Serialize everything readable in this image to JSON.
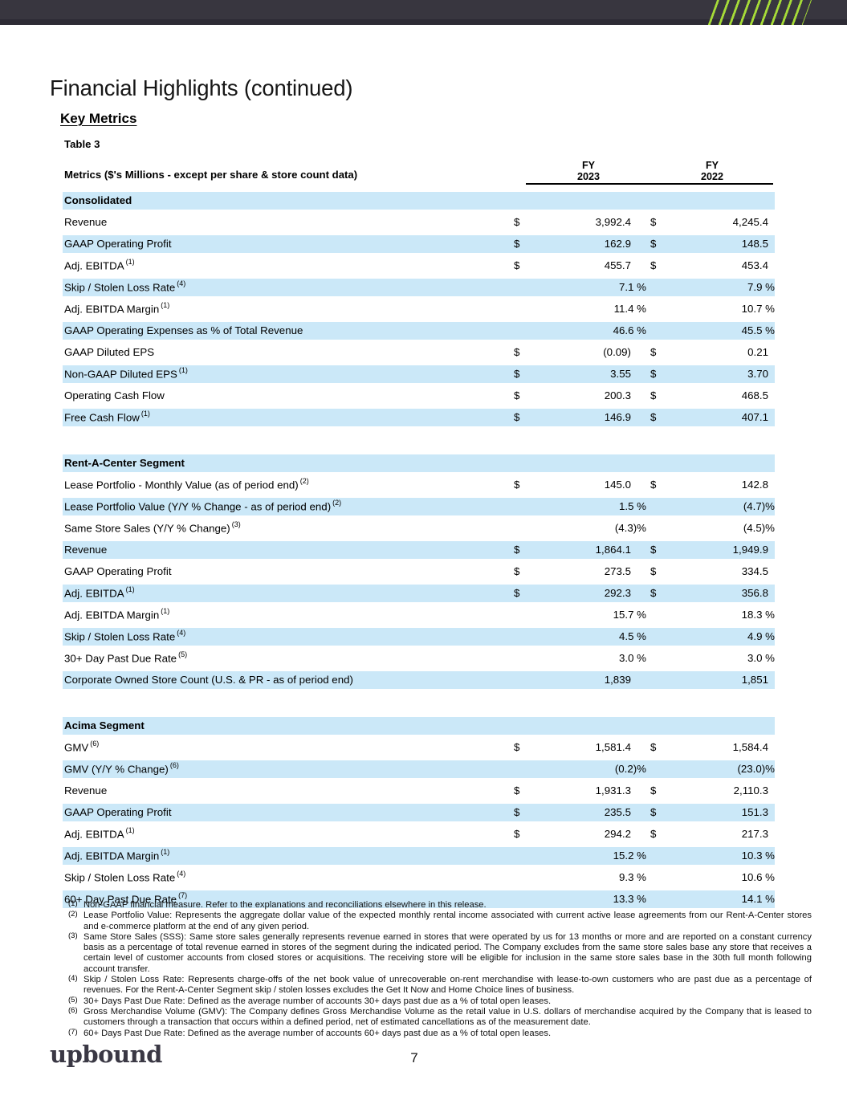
{
  "header": {
    "title": "Financial Highlights (continued)",
    "subtitle": "Key Metrics"
  },
  "table": {
    "label": "Table 3",
    "metrics_header": "Metrics ($'s Millions - except per share & store count data)",
    "columns": [
      {
        "line1": "FY",
        "line2": "2023"
      },
      {
        "line1": "FY",
        "line2": "2022"
      }
    ]
  },
  "colors": {
    "row_highlight": "#cbe8f8",
    "banner": "#38363f",
    "stripe_green": "#a6db38",
    "logo_text": "#3a3844"
  },
  "sections": [
    {
      "name": "Consolidated",
      "rows": [
        {
          "label": "Revenue",
          "sup": "",
          "d1": "$",
          "v1": "3,992.4",
          "d2": "$",
          "v2": "4,245.4"
        },
        {
          "label": "GAAP Operating Profit",
          "sup": "",
          "d1": "$",
          "v1": "162.9",
          "d2": "$",
          "v2": "148.5"
        },
        {
          "label": "Adj. EBITDA",
          "sup": "(1)",
          "d1": "$",
          "v1": "455.7",
          "d2": "$",
          "v2": "453.4"
        },
        {
          "label": "Skip / Stolen Loss Rate",
          "sup": "(4)",
          "d1": "",
          "v1": "7.1 %",
          "d2": "",
          "v2": "7.9 %"
        },
        {
          "label": "Adj. EBITDA Margin",
          "sup": "(1)",
          "d1": "",
          "v1": "11.4 %",
          "d2": "",
          "v2": "10.7 %"
        },
        {
          "label": "GAAP Operating Expenses as % of Total Revenue",
          "sup": "",
          "d1": "",
          "v1": "46.6 %",
          "d2": "",
          "v2": "45.5 %"
        },
        {
          "label": "GAAP Diluted EPS",
          "sup": "",
          "d1": "$",
          "v1": "(0.09)",
          "d2": "$",
          "v2": "0.21"
        },
        {
          "label": "Non-GAAP Diluted EPS",
          "sup": "(1)",
          "d1": "$",
          "v1": "3.55",
          "d2": "$",
          "v2": "3.70"
        },
        {
          "label": "Operating Cash Flow",
          "sup": "",
          "d1": "$",
          "v1": "200.3",
          "d2": "$",
          "v2": "468.5"
        },
        {
          "label": "Free Cash Flow",
          "sup": "(1)",
          "d1": "$",
          "v1": "146.9",
          "d2": "$",
          "v2": "407.1"
        }
      ]
    },
    {
      "name": "Rent-A-Center Segment",
      "rows": [
        {
          "label": "Lease Portfolio - Monthly Value (as of period end)",
          "sup": "(2)",
          "d1": "$",
          "v1": "145.0",
          "d2": "$",
          "v2": "142.8"
        },
        {
          "label": "Lease Portfolio Value (Y/Y % Change - as of period end)",
          "sup": "(2)",
          "d1": "",
          "v1": "1.5 %",
          "d2": "",
          "v2": "(4.7)%"
        },
        {
          "label": "Same Store Sales (Y/Y % Change)",
          "sup": "(3)",
          "d1": "",
          "v1": "(4.3)%",
          "d2": "",
          "v2": "(4.5)%"
        },
        {
          "label": "Revenue",
          "sup": "",
          "d1": "$",
          "v1": "1,864.1",
          "d2": "$",
          "v2": "1,949.9"
        },
        {
          "label": "GAAP Operating Profit",
          "sup": "",
          "d1": "$",
          "v1": "273.5",
          "d2": "$",
          "v2": "334.5"
        },
        {
          "label": "Adj. EBITDA",
          "sup": "(1)",
          "d1": "$",
          "v1": "292.3",
          "d2": "$",
          "v2": "356.8"
        },
        {
          "label": "Adj. EBITDA Margin",
          "sup": "(1)",
          "d1": "",
          "v1": "15.7 %",
          "d2": "",
          "v2": "18.3 %"
        },
        {
          "label": "Skip / Stolen Loss Rate",
          "sup": "(4)",
          "d1": "",
          "v1": "4.5 %",
          "d2": "",
          "v2": "4.9 %"
        },
        {
          "label": "30+ Day Past Due Rate",
          "sup": "(5)",
          "d1": "",
          "v1": "3.0 %",
          "d2": "",
          "v2": "3.0 %"
        },
        {
          "label": "Corporate Owned Store Count (U.S. & PR - as of period end)",
          "sup": "",
          "d1": "",
          "v1": "1,839",
          "d2": "",
          "v2": "1,851"
        }
      ]
    },
    {
      "name": "Acima Segment",
      "rows": [
        {
          "label": "GMV",
          "sup": "(6)",
          "d1": "$",
          "v1": "1,581.4",
          "d2": "$",
          "v2": "1,584.4"
        },
        {
          "label": "GMV (Y/Y % Change)",
          "sup": "(6)",
          "d1": "",
          "v1": "(0.2)%",
          "d2": "",
          "v2": "(23.0)%"
        },
        {
          "label": "Revenue",
          "sup": "",
          "d1": "$",
          "v1": "1,931.3",
          "d2": "$",
          "v2": "2,110.3"
        },
        {
          "label": "GAAP Operating Profit",
          "sup": "",
          "d1": "$",
          "v1": "235.5",
          "d2": "$",
          "v2": "151.3"
        },
        {
          "label": "Adj. EBITDA",
          "sup": "(1)",
          "d1": "$",
          "v1": "294.2",
          "d2": "$",
          "v2": "217.3"
        },
        {
          "label": "Adj. EBITDA Margin",
          "sup": "(1)",
          "d1": "",
          "v1": "15.2 %",
          "d2": "",
          "v2": "10.3 %"
        },
        {
          "label": "Skip / Stolen Loss Rate",
          "sup": "(4)",
          "d1": "",
          "v1": "9.3 %",
          "d2": "",
          "v2": "10.6 %"
        },
        {
          "label": "60+ Day Past Due Rate",
          "sup": "(7)",
          "d1": "",
          "v1": "13.3 %",
          "d2": "",
          "v2": "14.1 %"
        }
      ]
    }
  ],
  "footnotes": [
    {
      "ref": "(1)",
      "text": "Non-GAAP financial measure. Refer to the explanations and reconciliations elsewhere in this release."
    },
    {
      "ref": "(2)",
      "text": "Lease Portfolio Value: Represents the aggregate dollar value of the expected monthly rental income associated with current active lease agreements from our Rent-A-Center stores and e-commerce platform at the end of any given period."
    },
    {
      "ref": "(3)",
      "text": "Same Store Sales (SSS): Same store sales generally represents revenue earned in stores that were operated by us for 13 months or more and are reported on a constant currency basis as a percentage of total revenue earned in stores of the segment during the indicated period. The Company excludes from the same store sales base any store that receives a certain level of customer accounts from closed stores or acquisitions. The receiving store will be eligible for inclusion in the same store sales base in the 30th full month following account transfer."
    },
    {
      "ref": "(4)",
      "text": "Skip / Stolen Loss Rate: Represents charge-offs of the net book value of unrecoverable on-rent merchandise with lease-to-own customers who are past due as a percentage of revenues. For the Rent-A-Center Segment skip / stolen losses excludes the Get It Now and Home Choice lines of business."
    },
    {
      "ref": "(5)",
      "text": "30+ Days Past Due Rate: Defined as the average number of accounts 30+ days past due as a % of total open leases."
    },
    {
      "ref": "(6)",
      "text": "Gross Merchandise Volume (GMV): The Company defines Gross Merchandise Volume as the retail value in U.S. dollars of merchandise acquired by the Company that is leased to customers through a transaction that occurs within a defined period, net of estimated cancellations as of the measurement date."
    },
    {
      "ref": "(7)",
      "text": "60+ Days Past Due Rate: Defined as the average number of accounts 60+ days past due as a % of total open leases."
    }
  ],
  "footer": {
    "logo_text": "upbound",
    "page_number": "7"
  }
}
